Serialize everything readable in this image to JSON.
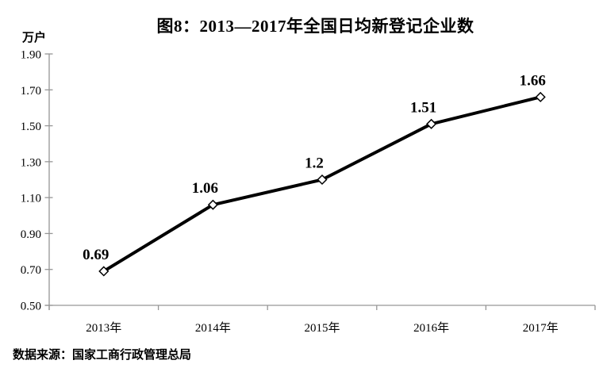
{
  "page": {
    "title": "图8：2013—2017年全国日均新登记企业数",
    "unit_label": "万户",
    "source_note": "数据来源：国家工商行政管理总局"
  },
  "chart_data": {
    "type": "line",
    "title": "图8：2013—2017年全国日均新登记企业数",
    "xlabel": "",
    "ylabel": "万户",
    "categories": [
      "2013年",
      "2014年",
      "2015年",
      "2016年",
      "2017年"
    ],
    "series": [
      {
        "name": "全国日均新登记企业数",
        "values": [
          0.69,
          1.06,
          1.2,
          1.51,
          1.66
        ]
      }
    ],
    "data_labels": [
      "0.69",
      "1.06",
      "1.2",
      "1.51",
      "1.66"
    ],
    "ylim": [
      0.5,
      1.9
    ],
    "y_tick_labels": [
      "1.90",
      "1.70",
      "1.50",
      "1.30",
      "1.10",
      "0.90",
      "0.70",
      "0.50"
    ],
    "grid": false,
    "legend_position": "none",
    "line_color": "#000000",
    "marker_style": "diamond",
    "marker_fill": "#ffffff",
    "marker_stroke": "#000000",
    "axis_color": "#969696",
    "text_color": "#000000",
    "background_color": "#ffffff",
    "source": "数据来源：国家工商行政管理总局"
  }
}
